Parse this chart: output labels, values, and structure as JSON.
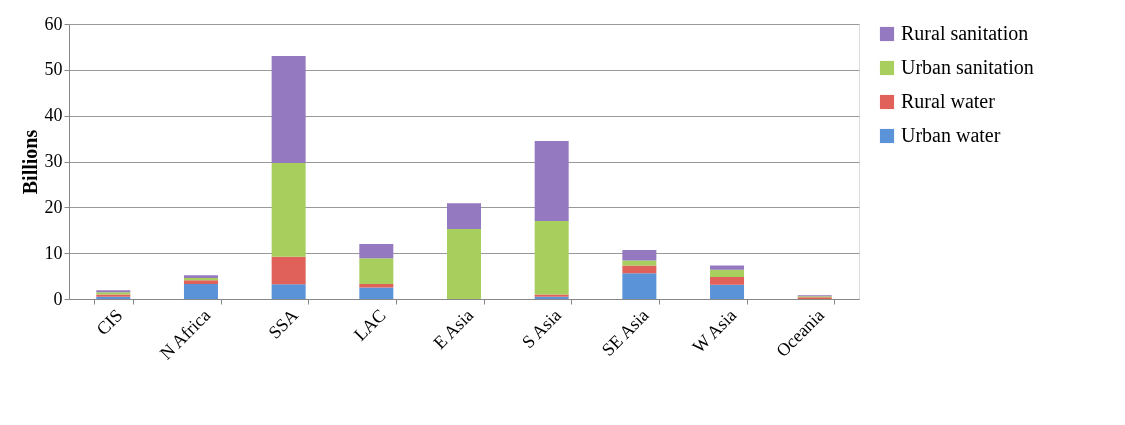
{
  "chart_data": {
    "type": "bar",
    "stacked": true,
    "ylabel": "Billions",
    "categories": [
      "CIS",
      "N Africa",
      "SSA",
      "LAC",
      "E Asia",
      "S Asia",
      "SE Asia",
      "W Asia",
      "Oceania"
    ],
    "series": [
      {
        "name": "Urban water",
        "color": "#5a93d8",
        "values": [
          0.5,
          3.3,
          3.2,
          2.5,
          0,
          0.5,
          5.6,
          3.1,
          null
        ]
      },
      {
        "name": "Rural water",
        "color": "#e0605a",
        "values": [
          0.5,
          0.8,
          6.0,
          0.8,
          0,
          0.5,
          1.7,
          1.7,
          0.4
        ]
      },
      {
        "name": "Urban sanitation",
        "color": "#a8cf5e",
        "values": [
          0.5,
          0.5,
          20.5,
          5.6,
          15.3,
          16,
          1.1,
          1.6,
          0.2
        ]
      },
      {
        "name": "Rural sanitation",
        "color": "#9479c0",
        "values": [
          0.4,
          0.6,
          23.3,
          3.1,
          5.6,
          17.5,
          2.3,
          0.9,
          0.2
        ]
      }
    ],
    "ylim": [
      0,
      60
    ],
    "yticks": [
      0,
      10,
      20,
      30,
      40,
      50,
      60
    ],
    "grid": "y",
    "legend": "right"
  }
}
